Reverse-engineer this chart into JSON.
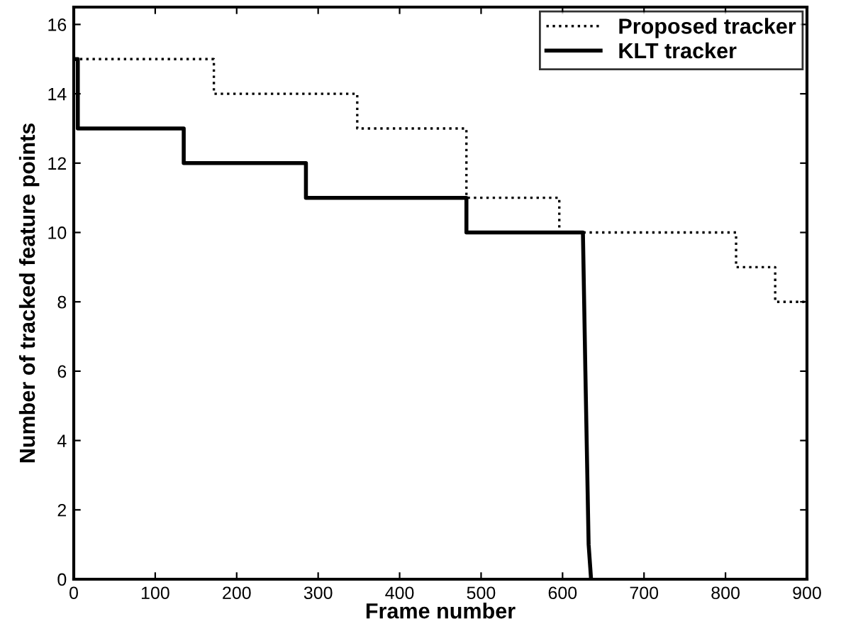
{
  "chart_data": {
    "type": "line",
    "xlabel": "Frame number",
    "ylabel": "Number of tracked feature points",
    "xlim": [
      0,
      900
    ],
    "ylim": [
      0,
      16.5
    ],
    "xticks": [
      0,
      100,
      200,
      300,
      400,
      500,
      600,
      700,
      800,
      900
    ],
    "yticks": [
      0,
      2,
      4,
      6,
      8,
      10,
      12,
      14,
      16
    ],
    "grid": false,
    "legend": "top right",
    "marker": "none",
    "series": [
      {
        "name": "Proposed tracker",
        "color": "#000000",
        "line_style": "dotted",
        "x": [
          0,
          172,
          172,
          348,
          348,
          482,
          482,
          596,
          596,
          813,
          813,
          861,
          861,
          900
        ],
        "values": [
          15,
          15,
          14,
          14,
          13,
          13,
          11,
          11,
          10,
          10,
          9,
          9,
          8,
          8
        ]
      },
      {
        "name": "KLT tracker",
        "color": "#000000",
        "line_style": "solid",
        "x": [
          0,
          5,
          5,
          135,
          135,
          285,
          285,
          482,
          482,
          625,
          628,
          632,
          635
        ],
        "values": [
          15,
          15,
          13,
          13,
          12,
          12,
          11,
          11,
          10,
          10,
          6,
          1,
          0
        ]
      }
    ]
  }
}
